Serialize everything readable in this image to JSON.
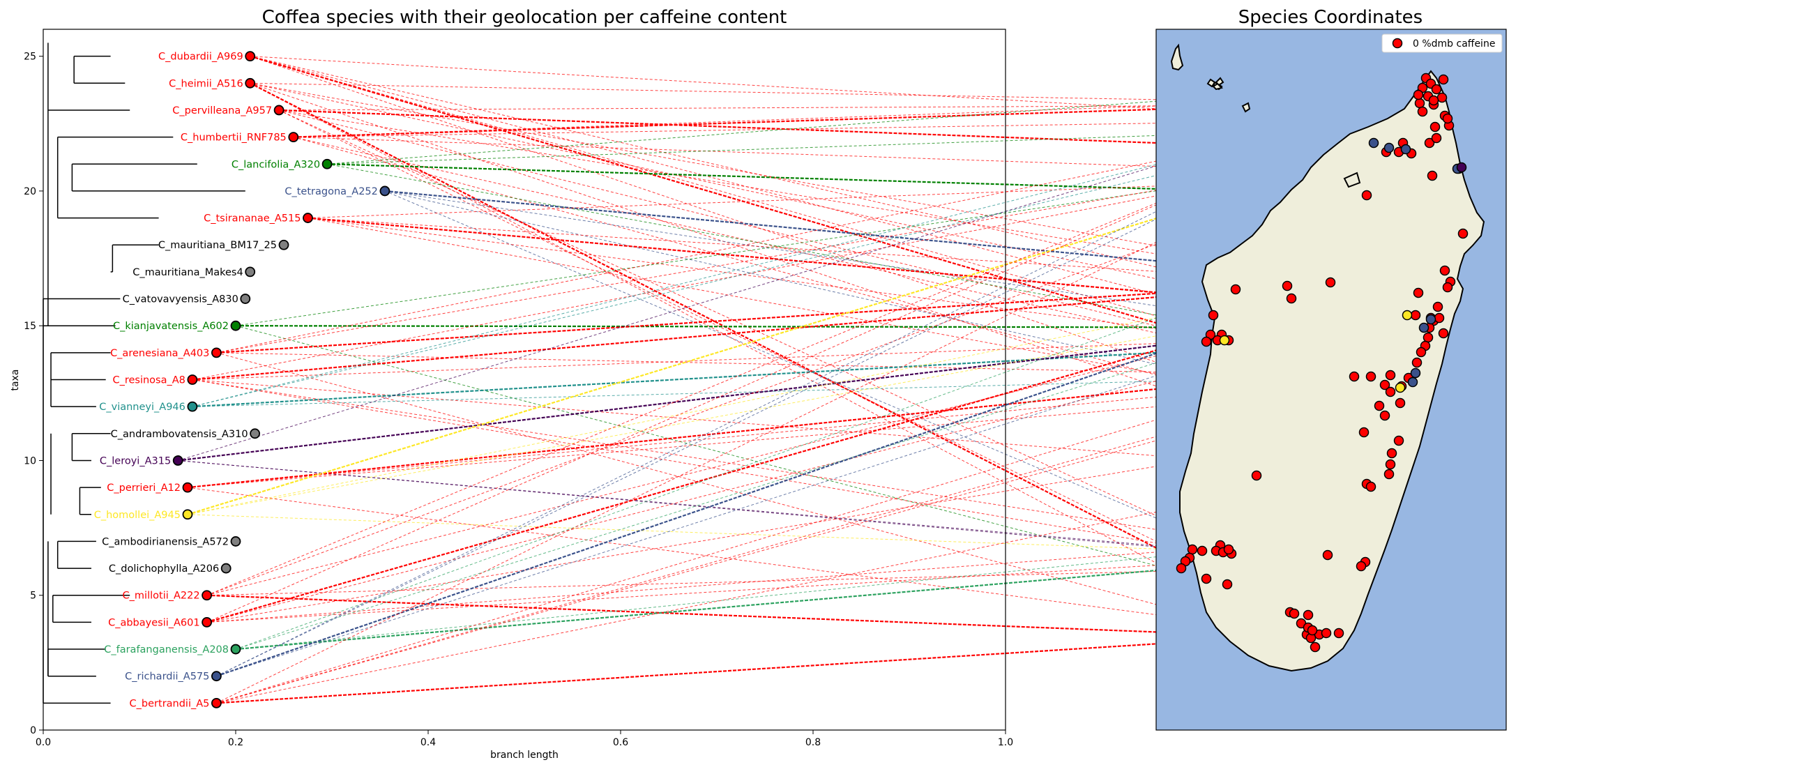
{
  "chart_data": [
    {
      "type": "scatter",
      "title": "Coffea species with their geolocation per caffeine content",
      "xlabel": "branch length",
      "ylabel": "taxa",
      "xlim": [
        0.0,
        1.0
      ],
      "ylim": [
        0,
        26
      ],
      "xticks": [
        "0.0",
        "0.2",
        "0.4",
        "0.6",
        "0.8",
        "1.0"
      ],
      "yticks": [
        "0",
        "5",
        "10",
        "15",
        "20",
        "25"
      ],
      "grid": false,
      "taxa": [
        {
          "label": "C_dubardii_A969",
          "y": 25,
          "x": 0.215,
          "color": "#ff0000"
        },
        {
          "label": "C_heimii_A516",
          "y": 24,
          "x": 0.215,
          "color": "#ff0000"
        },
        {
          "label": "C_pervilleana_A957",
          "y": 23,
          "x": 0.245,
          "color": "#ff0000"
        },
        {
          "label": "C_humbertii_RNF785",
          "y": 22,
          "x": 0.26,
          "color": "#ff0000"
        },
        {
          "label": "C_lancifolia_A320",
          "y": 21,
          "x": 0.295,
          "color": "#008000"
        },
        {
          "label": "C_tetragona_A252",
          "y": 20,
          "x": 0.355,
          "color": "#3b528b"
        },
        {
          "label": "C_tsirananae_A515",
          "y": 19,
          "x": 0.275,
          "color": "#ff0000"
        },
        {
          "label": "C_mauritiana_BM17_25",
          "y": 18,
          "x": 0.25,
          "color": "#808080"
        },
        {
          "label": "C_mauritiana_Makes4",
          "y": 17,
          "x": 0.215,
          "color": "#808080"
        },
        {
          "label": "C_vatovavyensis_A830",
          "y": 16,
          "x": 0.21,
          "color": "#808080"
        },
        {
          "label": "C_kianjavatensis_A602",
          "y": 15,
          "x": 0.2,
          "color": "#008000"
        },
        {
          "label": "C_arenesiana_A403",
          "y": 14,
          "x": 0.18,
          "color": "#ff0000"
        },
        {
          "label": "C_resinosa_A8",
          "y": 13,
          "x": 0.155,
          "color": "#ff0000"
        },
        {
          "label": "C_vianneyi_A946",
          "y": 12,
          "x": 0.155,
          "color": "#21918c"
        },
        {
          "label": "C_andrambovatensis_A310",
          "y": 11,
          "x": 0.22,
          "color": "#808080"
        },
        {
          "label": "C_leroyi_A315",
          "y": 10,
          "x": 0.14,
          "color": "#440154"
        },
        {
          "label": "C_perrieri_A12",
          "y": 9,
          "x": 0.15,
          "color": "#ff0000"
        },
        {
          "label": "C_homollei_A945",
          "y": 8,
          "x": 0.15,
          "color": "#fde725"
        },
        {
          "label": "C_ambodirianensis_A572",
          "y": 7,
          "x": 0.2,
          "color": "#808080"
        },
        {
          "label": "C_dolichophylla_A206",
          "y": 6,
          "x": 0.19,
          "color": "#808080"
        },
        {
          "label": "C_millotii_A222",
          "y": 5,
          "x": 0.17,
          "color": "#ff0000"
        },
        {
          "label": "C_abbayesii_A601",
          "y": 4,
          "x": 0.17,
          "color": "#ff0000"
        },
        {
          "label": "C_farafanganensis_A208",
          "y": 3,
          "x": 0.2,
          "color": "#2ca25f"
        },
        {
          "label": "C_richardii_A575",
          "y": 2,
          "x": 0.18,
          "color": "#3b528b"
        },
        {
          "label": "C_bertrandii_A5",
          "y": 1,
          "x": 0.18,
          "color": "#ff0000"
        }
      ]
    },
    {
      "type": "scatter",
      "title": "Species Coordinates",
      "legend": {
        "label": "0 %dmb caffeine",
        "placement": "top-right",
        "color": "#ff0000"
      },
      "colors": {
        "ocean": "#98b7e2",
        "land": "#efeedb"
      }
    }
  ]
}
